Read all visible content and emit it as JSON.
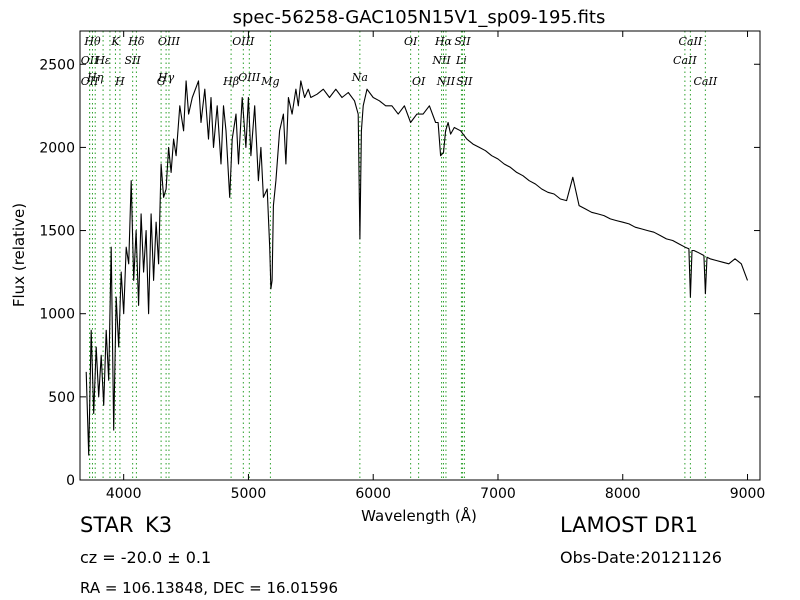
{
  "chart_data": {
    "type": "line",
    "title": "spec-56258-GAC105N15V1_sp09-195.fits",
    "xlabel": "Wavelength (Å)",
    "ylabel": "Flux (relative)",
    "xlim": [
      3650,
      9100
    ],
    "ylim": [
      0,
      2700
    ],
    "xticks": [
      4000,
      5000,
      6000,
      7000,
      8000,
      9000
    ],
    "yticks": [
      0,
      500,
      1000,
      1500,
      2000,
      2500
    ],
    "grid": false,
    "line_color": "#000000",
    "spectral_line_color": "#2ca02c",
    "series": [
      {
        "x": [
          3700,
          3720,
          3740,
          3760,
          3780,
          3800,
          3820,
          3840,
          3860,
          3880,
          3900,
          3920,
          3940,
          3960,
          3980,
          4000,
          4020,
          4040,
          4060,
          4080,
          4100,
          4120,
          4140,
          4160,
          4180,
          4200,
          4220,
          4240,
          4260,
          4280,
          4300,
          4320,
          4340,
          4360,
          4380,
          4400,
          4420,
          4450,
          4480,
          4500,
          4520,
          4550,
          4600,
          4620,
          4650,
          4680,
          4700,
          4720,
          4750,
          4780,
          4800,
          4820,
          4850,
          4870,
          4900,
          4920,
          4950,
          4980,
          5000,
          5020,
          5050,
          5080,
          5100,
          5120,
          5150,
          5170,
          5180,
          5190,
          5200,
          5220,
          5250,
          5280,
          5300,
          5320,
          5350,
          5380,
          5400,
          5420,
          5450,
          5480,
          5500,
          5550,
          5600,
          5650,
          5700,
          5750,
          5800,
          5850,
          5880,
          5893,
          5905,
          5920,
          5950,
          6000,
          6050,
          6100,
          6150,
          6200,
          6250,
          6300,
          6350,
          6400,
          6450,
          6500,
          6520,
          6540,
          6563,
          6580,
          6600,
          6620,
          6650,
          6700,
          6750,
          6800,
          6850,
          6900,
          6950,
          7000,
          7050,
          7100,
          7150,
          7200,
          7250,
          7300,
          7350,
          7400,
          7450,
          7500,
          7550,
          7600,
          7650,
          7700,
          7750,
          7800,
          7850,
          7900,
          7950,
          8000,
          8050,
          8100,
          8150,
          8200,
          8250,
          8300,
          8350,
          8400,
          8450,
          8500,
          8530,
          8542,
          8555,
          8570,
          8600,
          8650,
          8662,
          8675,
          8700,
          8750,
          8800,
          8850,
          8900,
          8950,
          9000
        ],
        "y": [
          650,
          150,
          900,
          400,
          800,
          500,
          750,
          450,
          900,
          600,
          1400,
          300,
          1100,
          800,
          1250,
          1000,
          1400,
          1300,
          1800,
          1200,
          1500,
          1050,
          1600,
          1250,
          1500,
          1000,
          1600,
          1200,
          1550,
          1300,
          1900,
          1700,
          1750,
          2000,
          1850,
          2050,
          1950,
          2250,
          2100,
          2400,
          2200,
          2300,
          2400,
          2150,
          2350,
          2050,
          2300,
          2000,
          2250,
          1900,
          2250,
          2100,
          1700,
          2050,
          2200,
          1900,
          2300,
          2000,
          2300,
          1950,
          2250,
          1800,
          2000,
          1700,
          1750,
          1400,
          1150,
          1200,
          1650,
          1800,
          2100,
          2200,
          1900,
          2300,
          2200,
          2350,
          2250,
          2400,
          2300,
          2350,
          2300,
          2320,
          2350,
          2300,
          2350,
          2300,
          2330,
          2280,
          2200,
          1450,
          2100,
          2250,
          2350,
          2300,
          2280,
          2250,
          2250,
          2200,
          2250,
          2150,
          2200,
          2200,
          2250,
          2150,
          2150,
          1950,
          1970,
          2100,
          2150,
          2080,
          2120,
          2100,
          2050,
          2020,
          2000,
          1980,
          1950,
          1930,
          1900,
          1880,
          1850,
          1830,
          1800,
          1780,
          1750,
          1730,
          1720,
          1690,
          1680,
          1820,
          1650,
          1630,
          1610,
          1600,
          1590,
          1570,
          1560,
          1550,
          1540,
          1520,
          1510,
          1500,
          1490,
          1470,
          1450,
          1440,
          1420,
          1400,
          1390,
          1100,
          1380,
          1380,
          1370,
          1350,
          1120,
          1340,
          1330,
          1320,
          1310,
          1300,
          1330,
          1300,
          1200
        ]
      }
    ],
    "spectral_lines": [
      {
        "wl": 3727,
        "label": "OII",
        "row": 2
      },
      {
        "wl": 3727,
        "label": "OII",
        "row": 4
      },
      {
        "wl": 3750,
        "label": "Hθ",
        "row": 1
      },
      {
        "wl": 3772,
        "label": "Hη",
        "row": 3
      },
      {
        "wl": 3835,
        "label": "Hε",
        "row": 2
      },
      {
        "wl": 3890,
        "label": "",
        "row": 0
      },
      {
        "wl": 3934,
        "label": "K",
        "row": 1
      },
      {
        "wl": 3970,
        "label": "H",
        "row": 4
      },
      {
        "wl": 4072,
        "label": "SII",
        "row": 2
      },
      {
        "wl": 4102,
        "label": "Hδ",
        "row": 1
      },
      {
        "wl": 4300,
        "label": "G",
        "row": 4
      },
      {
        "wl": 4340,
        "label": "Hγ",
        "row": 3
      },
      {
        "wl": 4363,
        "label": "OIII",
        "row": 1
      },
      {
        "wl": 4861,
        "label": "Hβ",
        "row": 4
      },
      {
        "wl": 4959,
        "label": "OIII",
        "row": 1
      },
      {
        "wl": 5007,
        "label": "OIII",
        "row": 3
      },
      {
        "wl": 5176,
        "label": "Mg",
        "row": 4
      },
      {
        "wl": 5893,
        "label": "Na",
        "row": 3
      },
      {
        "wl": 6300,
        "label": "OI",
        "row": 1
      },
      {
        "wl": 6364,
        "label": "OI",
        "row": 4
      },
      {
        "wl": 6548,
        "label": "NII",
        "row": 2
      },
      {
        "wl": 6563,
        "label": "Hα",
        "row": 1
      },
      {
        "wl": 6583,
        "label": "NII",
        "row": 4
      },
      {
        "wl": 6707,
        "label": "Li",
        "row": 2
      },
      {
        "wl": 6716,
        "label": "SII",
        "row": 1
      },
      {
        "wl": 6731,
        "label": "SII",
        "row": 4
      },
      {
        "wl": 8498,
        "label": "CaII",
        "row": 2
      },
      {
        "wl": 8542,
        "label": "CaII",
        "row": 1
      },
      {
        "wl": 8662,
        "label": "CaII",
        "row": 4
      }
    ]
  },
  "info": {
    "object_class": "STAR",
    "object_subclass": "K3",
    "survey": "LAMOST DR1",
    "redshift": "cz = -20.0 ± 0.1",
    "obs_date": "Obs-Date:20121126",
    "coordinates": "RA = 106.13848, DEC = 16.01596"
  }
}
